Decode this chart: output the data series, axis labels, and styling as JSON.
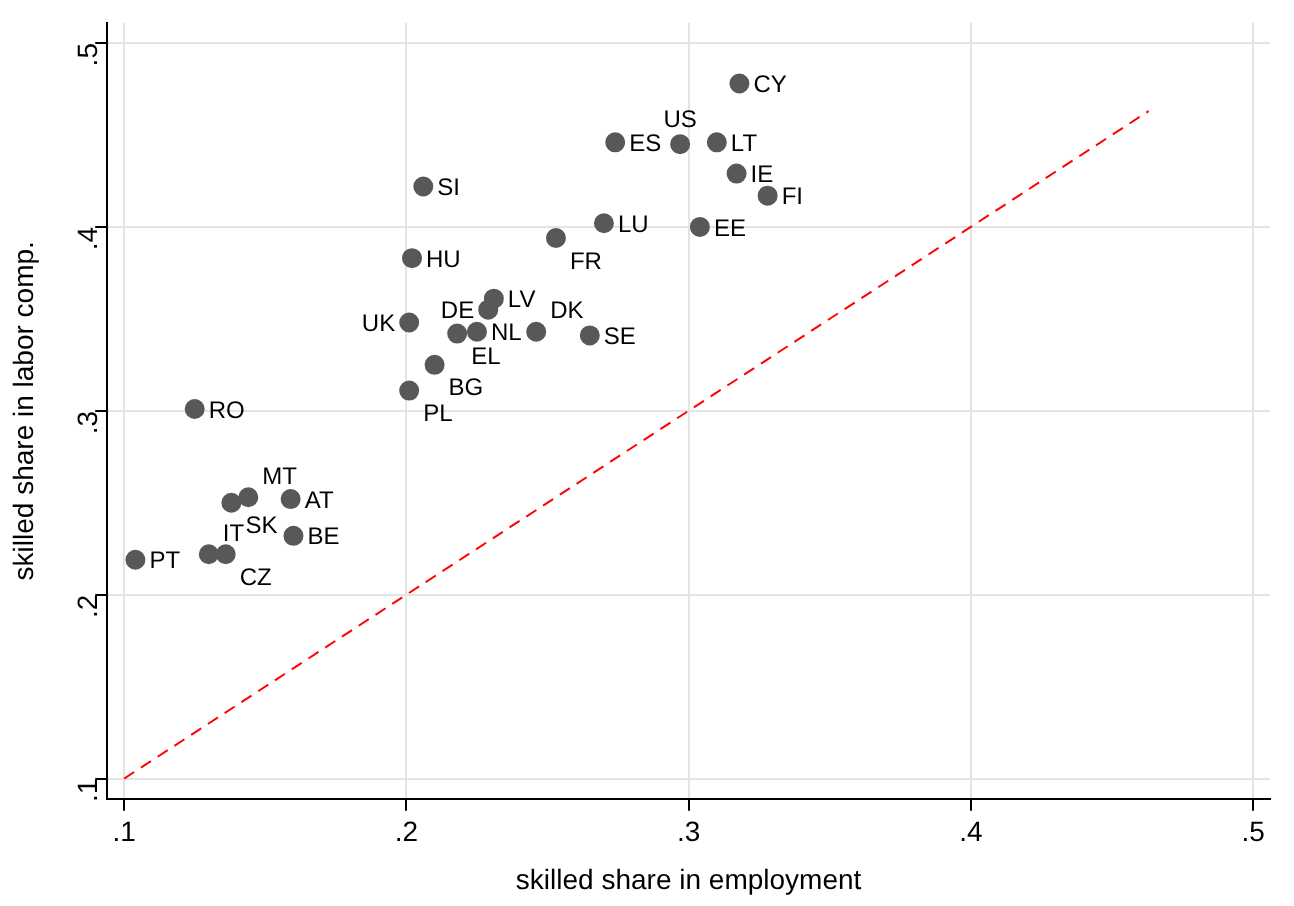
{
  "chart_data": {
    "type": "scatter",
    "xlabel": "skilled share in employment",
    "ylabel": "skilled share in labor comp.",
    "xlim": [
      0.094,
      0.506
    ],
    "ylim": [
      0.089,
      0.511
    ],
    "xticks": [
      {
        "value": 0.1,
        "label": ".1"
      },
      {
        "value": 0.2,
        "label": ".2"
      },
      {
        "value": 0.3,
        "label": ".3"
      },
      {
        "value": 0.4,
        "label": ".4"
      },
      {
        "value": 0.5,
        "label": ".5"
      }
    ],
    "yticks": [
      {
        "value": 0.1,
        "label": ".1"
      },
      {
        "value": 0.2,
        "label": ".2"
      },
      {
        "value": 0.3,
        "label": ".3"
      },
      {
        "value": 0.4,
        "label": ".4"
      },
      {
        "value": 0.5,
        "label": ".5"
      }
    ],
    "grid": true,
    "marker": "circle",
    "series": [
      {
        "type": "scatter",
        "color": "#585858",
        "x": [
          0.318,
          0.274,
          0.297,
          0.31,
          0.317,
          0.328,
          0.304,
          0.27,
          0.253,
          0.206,
          0.202,
          0.231,
          0.229,
          0.201,
          0.218,
          0.225,
          0.246,
          0.265,
          0.21,
          0.201,
          0.125,
          0.144,
          0.138,
          0.159,
          0.16,
          0.104,
          0.13,
          0.136
        ],
        "values": [
          0.478,
          0.446,
          0.445,
          0.446,
          0.429,
          0.417,
          0.4,
          0.402,
          0.394,
          0.422,
          0.383,
          0.361,
          0.355,
          0.348,
          0.342,
          0.343,
          0.343,
          0.341,
          0.325,
          0.311,
          0.301,
          0.253,
          0.25,
          0.252,
          0.232,
          0.219,
          0.222,
          0.222
        ],
        "value_labels": [
          "CY",
          "ES",
          "US",
          "LT",
          "IE",
          "FI",
          "EE",
          "LU",
          "FR",
          "SI",
          "HU",
          "LV",
          "DE",
          "UK",
          "EL",
          "NL",
          "DK",
          "SE",
          "BG",
          "PL",
          "RO",
          "MT",
          "SK",
          "AT",
          "BE",
          "PT",
          "IT",
          "CZ"
        ]
      },
      {
        "type": "line",
        "color": "#ff0000",
        "line_style": "dashed",
        "marker": "none",
        "x": [
          0.1,
          0.463
        ],
        "values": [
          0.1,
          0.463
        ]
      }
    ]
  }
}
